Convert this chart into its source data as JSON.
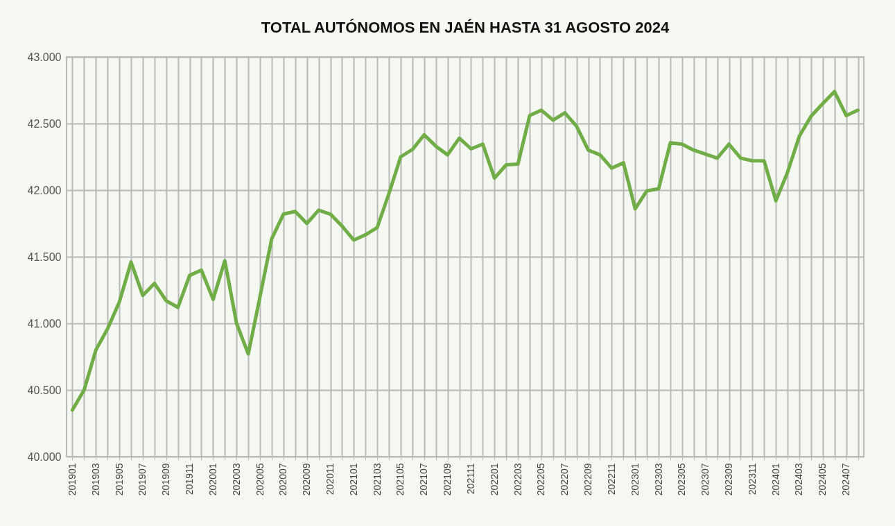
{
  "chart_data": {
    "type": "line",
    "title": "TOTAL AUTÓNOMOS EN JAÉN HASTA 31 AGOSTO 2024",
    "categories": [
      "201901",
      null,
      "201903",
      null,
      "201905",
      null,
      "201907",
      null,
      "201909",
      null,
      "201911",
      null,
      "202001",
      null,
      "202003",
      null,
      "202005",
      null,
      "202007",
      null,
      "202009",
      null,
      "202011",
      null,
      "202101",
      null,
      "202103",
      null,
      "202105",
      null,
      "202107",
      null,
      "202109",
      null,
      "202111",
      null,
      "202201",
      null,
      "202203",
      null,
      "202205",
      null,
      "202207",
      null,
      "202209",
      null,
      "202211",
      null,
      "202301",
      null,
      "202303",
      null,
      "202305",
      null,
      "202307",
      null,
      "202309",
      null,
      "202311",
      null,
      "202401",
      null,
      "202403",
      null,
      "202405",
      null,
      "202407",
      null
    ],
    "series": [
      {
        "color": "#70ad47",
        "values": [
          40350,
          40500,
          40800,
          40960,
          41160,
          41460,
          41210,
          41300,
          41170,
          41120,
          41360,
          41400,
          41180,
          41470,
          41000,
          40770,
          41200,
          41635,
          41820,
          41840,
          41750,
          41850,
          41820,
          41730,
          41625,
          41665,
          41720,
          41975,
          42250,
          42305,
          42415,
          42330,
          42265,
          42390,
          42310,
          42345,
          42090,
          42190,
          42195,
          42560,
          42600,
          42525,
          42580,
          42480,
          42300,
          42265,
          42165,
          42205,
          41860,
          41995,
          42010,
          42355,
          42345,
          42300,
          42270,
          42240,
          42345,
          42240,
          42220,
          42220,
          41920,
          42135,
          42405,
          42555,
          42650,
          42740,
          42560,
          42600
        ]
      }
    ],
    "ylim": [
      40000,
      43000
    ],
    "yticks": [
      {
        "value": 40000,
        "label": "40.000"
      },
      {
        "value": 40500,
        "label": "40.500"
      },
      {
        "value": 41000,
        "label": "41.000"
      },
      {
        "value": 41500,
        "label": "41.500"
      },
      {
        "value": 42000,
        "label": "42.000"
      },
      {
        "value": 42500,
        "label": "42.500"
      },
      {
        "value": 43000,
        "label": "43.000"
      }
    ],
    "grid": true,
    "marker": "none",
    "line_style": "solid"
  }
}
